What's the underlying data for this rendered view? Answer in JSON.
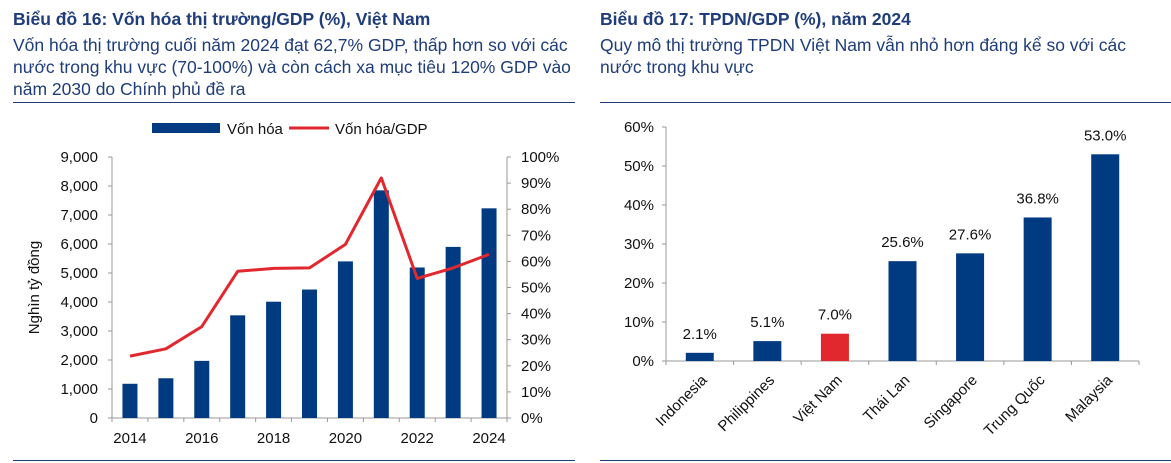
{
  "left": {
    "title": "Biểu đồ 16: Vốn hóa thị trường/GDP (%), Việt Nam",
    "subtitle": "Vốn hóa thị trường cuối năm 2024 đạt 62,7% GDP, thấp hơn so với các nước trong khu vực (70-100%) và còn cách xa mục tiêu 120% GDP vào năm 2030 do Chính phủ đề ra"
  },
  "right": {
    "title": "Biểu đồ 17: TPDN/GDP (%), năm 2024",
    "subtitle": "Quy mô thị trường TPDN Việt Nam vẫn nhỏ hơn đáng kể so với các nước trong khu vực"
  },
  "colors": {
    "navy": "#003a80",
    "red": "#e1282e",
    "title": "#1f3d7a",
    "axis": "#999999"
  },
  "chart_data": [
    {
      "type": "bar",
      "combo_line": true,
      "x": [
        2014,
        2015,
        2016,
        2017,
        2018,
        2019,
        2020,
        2021,
        2022,
        2023,
        2024
      ],
      "x_tick_labels": [
        "2014",
        "2016",
        "2018",
        "2020",
        "2022",
        "2024"
      ],
      "ylabel": "Nghìn tỷ đồng",
      "ylim": [
        0,
        9000
      ],
      "y_ticks": [
        "0",
        "1,000",
        "2,000",
        "3,000",
        "4,000",
        "5,000",
        "6,000",
        "7,000",
        "8,000",
        "9,000"
      ],
      "y2lim": [
        0,
        100
      ],
      "y2_ticks": [
        "0%",
        "10%",
        "20%",
        "30%",
        "40%",
        "50%",
        "60%",
        "70%",
        "80%",
        "90%",
        "100%"
      ],
      "legend_position": "top",
      "grid": false,
      "series": [
        {
          "name": "Vốn hóa",
          "kind": "bar",
          "axis": "left",
          "color": "#003a80",
          "values": [
            1180,
            1370,
            1970,
            3540,
            4010,
            4430,
            5400,
            7850,
            5190,
            5900,
            7230
          ]
        },
        {
          "name": "Vốn hóa/GDP",
          "kind": "line",
          "axis": "right",
          "color": "#e1282e",
          "values": [
            23.7,
            26.5,
            35.0,
            56.2,
            57.3,
            57.5,
            66.5,
            92.0,
            53.5,
            57.5,
            62.7
          ]
        }
      ]
    },
    {
      "type": "bar",
      "categories": [
        "Indonesia",
        "Philippines",
        "Việt Nam",
        "Thái Lan",
        "Singapore",
        "Trung Quốc",
        "Malaysia"
      ],
      "values": [
        2.1,
        5.1,
        7.0,
        25.6,
        27.6,
        36.8,
        53.0
      ],
      "data_labels": [
        "2.1%",
        "5.1%",
        "7.0%",
        "25.6%",
        "27.6%",
        "36.8%",
        "53.0%"
      ],
      "colors": [
        "#003a80",
        "#003a80",
        "#e1282e",
        "#003a80",
        "#003a80",
        "#003a80",
        "#003a80"
      ],
      "ylim": [
        0,
        60
      ],
      "y_ticks": [
        "0%",
        "10%",
        "20%",
        "30%",
        "40%",
        "50%",
        "60%"
      ],
      "grid": false
    }
  ]
}
